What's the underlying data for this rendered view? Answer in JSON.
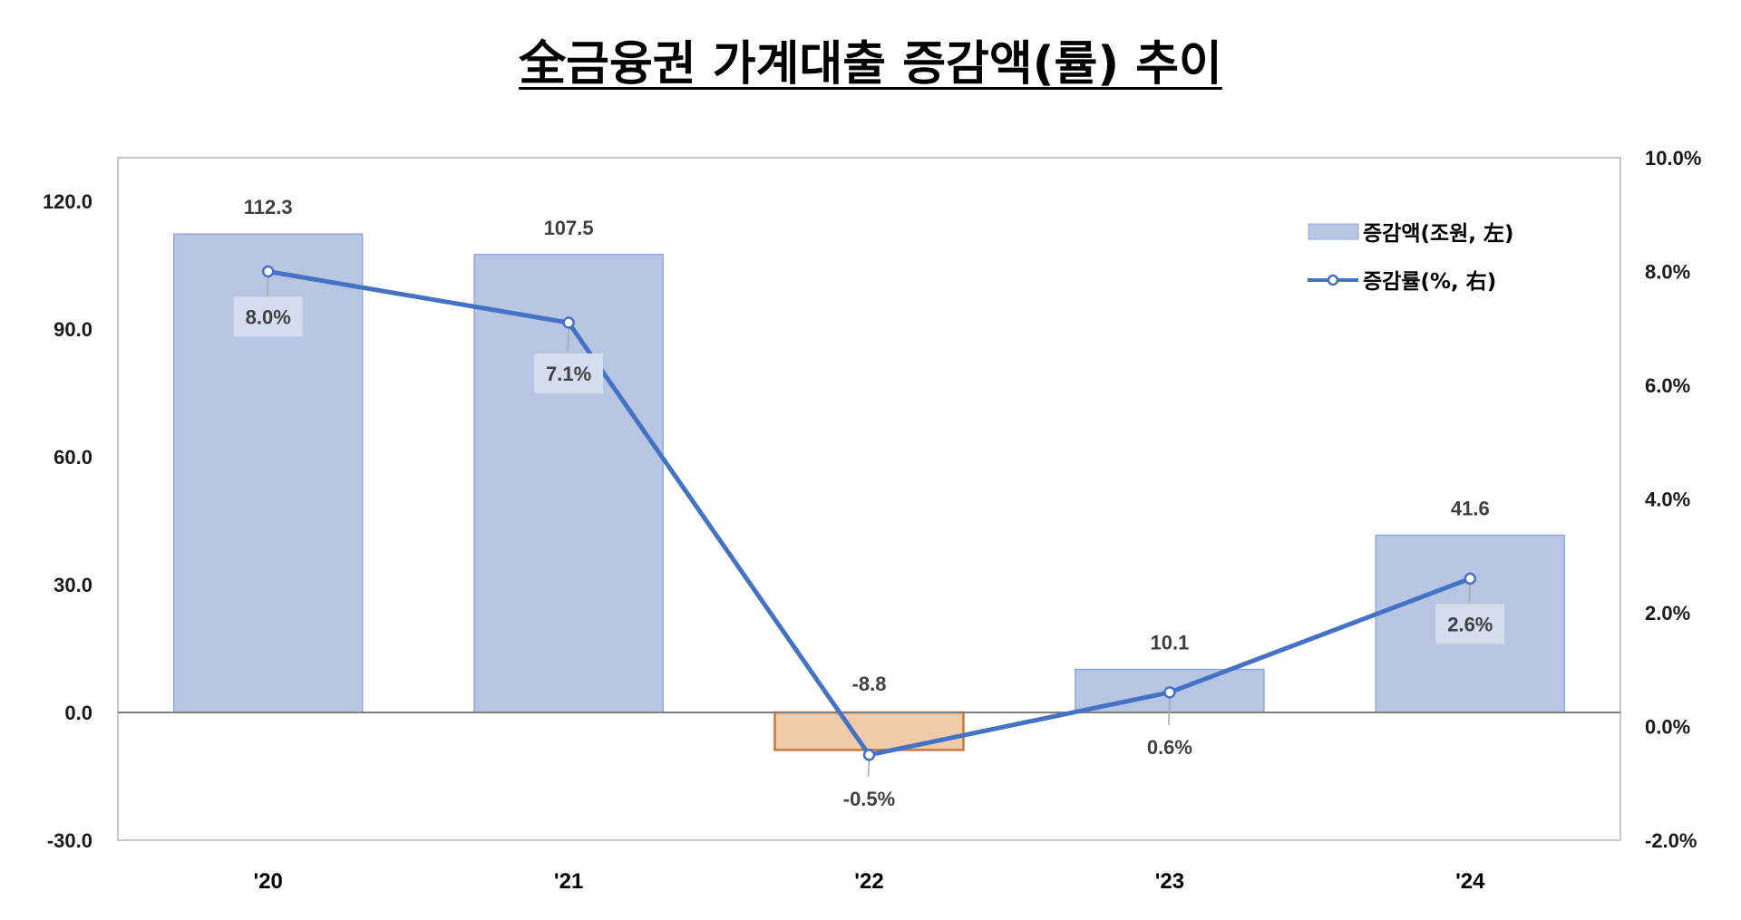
{
  "title": "全금융권 가계대출 증감액(률) 추이",
  "colors": {
    "bar_fill": "#b8c6e3",
    "bar_border": "#8fa8dd",
    "neg_bar_fill": "#f0cbaa",
    "neg_bar_border": "#c5793c",
    "line": "#4472c4",
    "label_box": "#d3ddee"
  },
  "legend": {
    "bar": "증감액(조원, 左)",
    "line": "증감률(%, 右)"
  },
  "left_axis": {
    "ticks": [
      "120.0",
      "90.0",
      "60.0",
      "30.0",
      "0.0",
      "-30.0"
    ]
  },
  "right_axis": {
    "ticks": [
      "10.0%",
      "8.0%",
      "6.0%",
      "4.0%",
      "2.0%",
      "0.0%",
      "-2.0%"
    ]
  },
  "categories": [
    "'20",
    "'21",
    "'22",
    "'23",
    "'24"
  ],
  "bar_labels": [
    "112.3",
    "107.5",
    "-8.8",
    "10.1",
    "41.6"
  ],
  "line_labels": [
    "8.0%",
    "7.1%",
    "-0.5%",
    "0.6%",
    "2.6%"
  ],
  "chart_data": {
    "type": "bar+line",
    "title": "全금융권 가계대출 증감액(률) 추이",
    "categories": [
      "'20",
      "'21",
      "'22",
      "'23",
      "'24"
    ],
    "series": [
      {
        "name": "증감액(조원, 左)",
        "type": "bar",
        "axis": "left",
        "values": [
          112.3,
          107.5,
          -8.8,
          10.1,
          41.6
        ]
      },
      {
        "name": "증감률(%, 右)",
        "type": "line",
        "axis": "right",
        "values": [
          8.0,
          7.1,
          -0.5,
          0.6,
          2.6
        ]
      }
    ],
    "left_ylim": [
      -30,
      130
    ],
    "left_ticks": [
      -30,
      0,
      30,
      60,
      90,
      120
    ],
    "right_ylim": [
      -2,
      10
    ],
    "right_ticks": [
      -2,
      0,
      2,
      4,
      6,
      8,
      10
    ],
    "xlabel": "",
    "ylabel_left": "",
    "ylabel_right": "",
    "grid": false,
    "legend_position": "top-right inside"
  }
}
